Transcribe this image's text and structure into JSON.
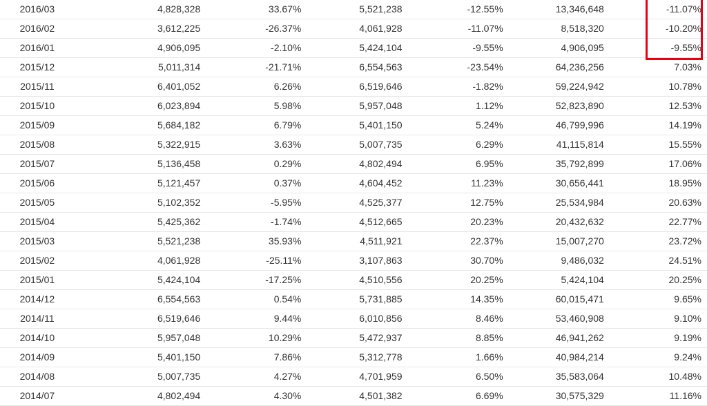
{
  "table": {
    "rows": [
      [
        "2016/03",
        "4,828,328",
        "33.67%",
        "5,521,238",
        "-12.55%",
        "13,346,648",
        "-11.07%"
      ],
      [
        "2016/02",
        "3,612,225",
        "-26.37%",
        "4,061,928",
        "-11.07%",
        "8,518,320",
        "-10.20%"
      ],
      [
        "2016/01",
        "4,906,095",
        "-2.10%",
        "5,424,104",
        "-9.55%",
        "4,906,095",
        "-9.55%"
      ],
      [
        "2015/12",
        "5,011,314",
        "-21.71%",
        "6,554,563",
        "-23.54%",
        "64,236,256",
        "7.03%"
      ],
      [
        "2015/11",
        "6,401,052",
        "6.26%",
        "6,519,646",
        "-1.82%",
        "59,224,942",
        "10.78%"
      ],
      [
        "2015/10",
        "6,023,894",
        "5.98%",
        "5,957,048",
        "1.12%",
        "52,823,890",
        "12.53%"
      ],
      [
        "2015/09",
        "5,684,182",
        "6.79%",
        "5,401,150",
        "5.24%",
        "46,799,996",
        "14.19%"
      ],
      [
        "2015/08",
        "5,322,915",
        "3.63%",
        "5,007,735",
        "6.29%",
        "41,115,814",
        "15.55%"
      ],
      [
        "2015/07",
        "5,136,458",
        "0.29%",
        "4,802,494",
        "6.95%",
        "35,792,899",
        "17.06%"
      ],
      [
        "2015/06",
        "5,121,457",
        "0.37%",
        "4,604,452",
        "11.23%",
        "30,656,441",
        "18.95%"
      ],
      [
        "2015/05",
        "5,102,352",
        "-5.95%",
        "4,525,377",
        "12.75%",
        "25,534,984",
        "20.63%"
      ],
      [
        "2015/04",
        "5,425,362",
        "-1.74%",
        "4,512,665",
        "20.23%",
        "20,432,632",
        "22.77%"
      ],
      [
        "2015/03",
        "5,521,238",
        "35.93%",
        "4,511,921",
        "22.37%",
        "15,007,270",
        "23.72%"
      ],
      [
        "2015/02",
        "4,061,928",
        "-25.11%",
        "3,107,863",
        "30.70%",
        "9,486,032",
        "24.51%"
      ],
      [
        "2015/01",
        "5,424,104",
        "-17.25%",
        "4,510,556",
        "20.25%",
        "5,424,104",
        "20.25%"
      ],
      [
        "2014/12",
        "6,554,563",
        "0.54%",
        "5,731,885",
        "14.35%",
        "60,015,471",
        "9.65%"
      ],
      [
        "2014/11",
        "6,519,646",
        "9.44%",
        "6,010,856",
        "8.46%",
        "53,460,908",
        "9.10%"
      ],
      [
        "2014/10",
        "5,957,048",
        "10.29%",
        "5,472,937",
        "8.85%",
        "46,941,262",
        "9.19%"
      ],
      [
        "2014/09",
        "5,401,150",
        "7.86%",
        "5,312,778",
        "1.66%",
        "40,984,214",
        "9.24%"
      ],
      [
        "2014/08",
        "5,007,735",
        "4.27%",
        "4,701,959",
        "6.50%",
        "35,583,064",
        "10.48%"
      ],
      [
        "2014/07",
        "4,802,494",
        "4.30%",
        "4,501,382",
        "6.69%",
        "30,575,329",
        "11.16%"
      ]
    ]
  },
  "colors": {
    "negative": "#e5232c",
    "text": "#333333",
    "highlight": "#e60012"
  }
}
